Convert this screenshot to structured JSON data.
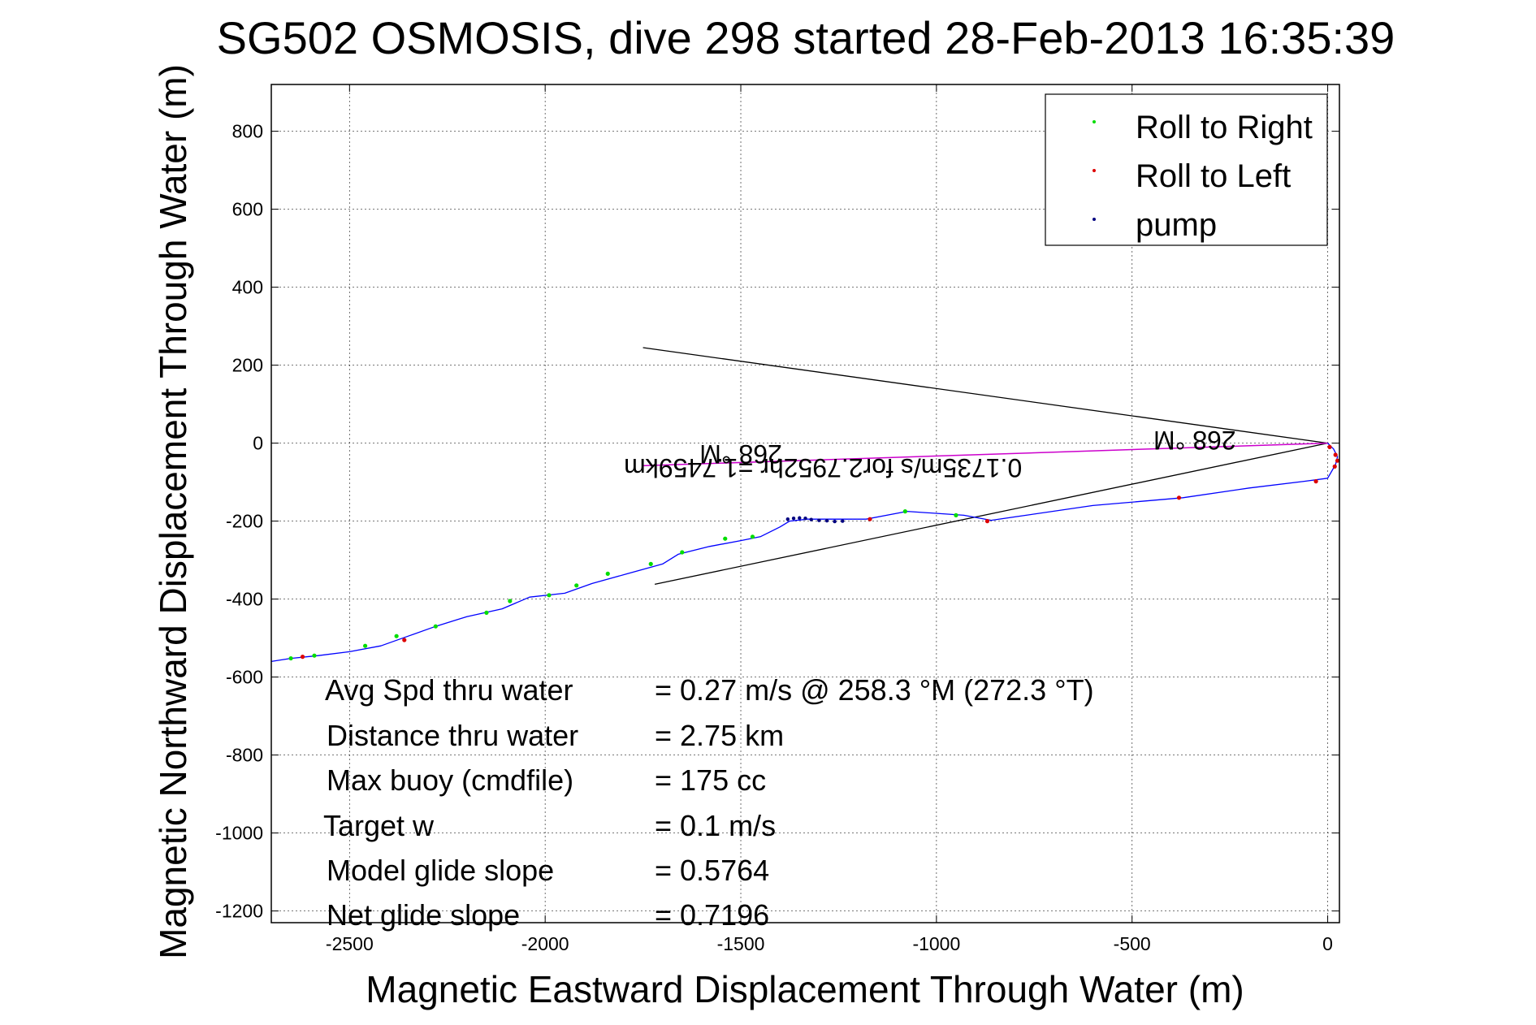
{
  "chart_data": {
    "type": "line",
    "title": "SG502 OSMOSIS, dive 298 started 28-Feb-2013 16:35:39",
    "xlabel": "Magnetic Eastward Displacement Through Water (m)",
    "ylabel": "Magnetic Northward Displacement Through Water (m)",
    "xlim": [
      -2700,
      30
    ],
    "ylim": [
      -1230,
      920
    ],
    "xticks": [
      -2500,
      -2000,
      -1500,
      -1000,
      -500,
      0
    ],
    "yticks": [
      800,
      600,
      400,
      200,
      0,
      -200,
      -400,
      -600,
      -800,
      -1000,
      -1200
    ],
    "grid": true,
    "legend_position": "top-right",
    "legend": [
      {
        "label": "Roll to Right",
        "color": "#00dd00"
      },
      {
        "label": "Roll to Left",
        "color": "#dd0000"
      },
      {
        "label": "pump",
        "color": "#000080"
      }
    ],
    "track": {
      "color": "#0000ff",
      "points": [
        [
          0,
          0
        ],
        [
          15,
          -15
        ],
        [
          25,
          -35
        ],
        [
          20,
          -55
        ],
        [
          0,
          -90
        ],
        [
          -60,
          -98
        ],
        [
          -200,
          -115
        ],
        [
          -370,
          -140
        ],
        [
          -600,
          -160
        ],
        [
          -860,
          -198
        ],
        [
          -930,
          -185
        ],
        [
          -1075,
          -175
        ],
        [
          -1180,
          -195
        ],
        [
          -1330,
          -195
        ],
        [
          -1375,
          -200
        ],
        [
          -1400,
          -215
        ],
        [
          -1450,
          -240
        ],
        [
          -1500,
          -250
        ],
        [
          -1580,
          -265
        ],
        [
          -1660,
          -285
        ],
        [
          -1700,
          -310
        ],
        [
          -1790,
          -335
        ],
        [
          -1880,
          -360
        ],
        [
          -1950,
          -385
        ],
        [
          -2040,
          -395
        ],
        [
          -2110,
          -425
        ],
        [
          -2200,
          -445
        ],
        [
          -2280,
          -470
        ],
        [
          -2350,
          -495
        ],
        [
          -2420,
          -520
        ],
        [
          -2500,
          -535
        ],
        [
          -2580,
          -545
        ],
        [
          -2650,
          -552
        ],
        [
          -2700,
          -560
        ]
      ]
    },
    "roll_right_points": [
      [
        -2650,
        -552
      ],
      [
        -2590,
        -545
      ],
      [
        -2460,
        -520
      ],
      [
        -2380,
        -495
      ],
      [
        -2280,
        -470
      ],
      [
        -2150,
        -435
      ],
      [
        -2090,
        -405
      ],
      [
        -1990,
        -390
      ],
      [
        -1920,
        -365
      ],
      [
        -1840,
        -335
      ],
      [
        -1730,
        -310
      ],
      [
        -1650,
        -280
      ],
      [
        -1540,
        -245
      ],
      [
        -1470,
        -240
      ],
      [
        -1080,
        -175
      ],
      [
        -950,
        -185
      ]
    ],
    "roll_left_points": [
      [
        -2620,
        -548
      ],
      [
        -2360,
        -505
      ],
      [
        -1170,
        -195
      ],
      [
        -870,
        -200
      ],
      [
        -380,
        -140
      ],
      [
        -30,
        -98
      ],
      [
        5,
        -10
      ],
      [
        20,
        -30
      ],
      [
        25,
        -45
      ],
      [
        18,
        -60
      ]
    ],
    "pump_points": [
      [
        -1380,
        -195
      ],
      [
        -1365,
        -193
      ],
      [
        -1350,
        -192
      ],
      [
        -1335,
        -193
      ],
      [
        -1320,
        -196
      ],
      [
        -1300,
        -198
      ],
      [
        -1280,
        -199
      ],
      [
        -1260,
        -201
      ],
      [
        -1240,
        -200
      ]
    ],
    "current_line": {
      "color": "#cc00cc",
      "points": [
        [
          0,
          0
        ],
        [
          -1750,
          -58
        ]
      ]
    },
    "reference_lines": [
      {
        "color": "#000000",
        "points": [
          [
            0,
            0
          ],
          [
            -1750,
            245
          ]
        ]
      },
      {
        "color": "#000000",
        "points": [
          [
            0,
            0
          ],
          [
            -1720,
            -362
          ]
        ]
      }
    ],
    "plot_labels": {
      "heading_right": "268 °M",
      "heading_left": "268 °M",
      "current": "0.1735m/s for2.7952hr =1.7459km"
    }
  },
  "annotations": [
    {
      "label": "Avg Spd thru water",
      "value": "=  0.27 m/s @ 258.3 °M (272.3 °T)"
    },
    {
      "label": "Distance thru water",
      "value": "=  2.75 km"
    },
    {
      "label": "Max buoy (cmdfile)",
      "value": "= 175 cc"
    },
    {
      "label": "Target w",
      "value": "= 0.1 m/s"
    },
    {
      "label": "Model glide slope",
      "value": "= 0.5764"
    },
    {
      "label": "Net glide slope",
      "value": "= 0.7196"
    }
  ]
}
